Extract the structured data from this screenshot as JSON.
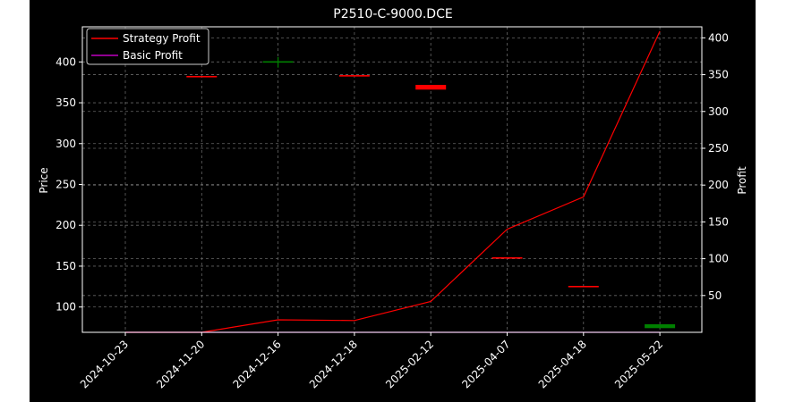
{
  "chart_data": {
    "type": "line",
    "title": "P2510-C-9000.DCE",
    "ylabel_left": "Price",
    "ylabel_right": "Profit",
    "categories": [
      "2024-10-23",
      "2024-11-20",
      "2024-12-16",
      "2024-12-18",
      "2025-02-12",
      "2025-04-07",
      "2025-04-18",
      "2025-05-22"
    ],
    "ylim_left": [
      69,
      443
    ],
    "yticks_left": [
      100,
      150,
      200,
      250,
      300,
      350,
      400
    ],
    "ylim_right": [
      0,
      415
    ],
    "yticks_right": [
      50,
      100,
      150,
      200,
      250,
      300,
      350,
      400
    ],
    "grid": true,
    "legend_position": "top-left",
    "series": [
      {
        "name": "Strategy Profit",
        "axis": "right",
        "color": "#ff0000",
        "values": [
          0,
          0,
          17,
          16,
          42,
          140,
          184,
          409
        ]
      },
      {
        "name": "Basic Profit",
        "axis": "right",
        "color": "#bf00bf",
        "values": [
          0,
          0,
          0,
          0,
          0,
          0,
          0,
          0
        ]
      }
    ],
    "candles": [
      {
        "x": "2024-11-20",
        "open": 382,
        "close": 382,
        "high": 382,
        "low": 382,
        "color": "#ff0000"
      },
      {
        "x": "2024-12-16",
        "open": 400,
        "close": 400,
        "high": 406,
        "low": 393,
        "color": "#008000"
      },
      {
        "x": "2024-12-18",
        "open": 383,
        "close": 383,
        "high": 383,
        "low": 383,
        "color": "#ff0000"
      },
      {
        "x": "2025-02-12",
        "open": 371,
        "close": 367,
        "high": 371,
        "low": 367,
        "color": "#ff0000"
      },
      {
        "x": "2025-04-07",
        "open": 160,
        "close": 160,
        "high": 160,
        "low": 160,
        "color": "#ff0000"
      },
      {
        "x": "2025-04-18",
        "open": 125,
        "close": 125,
        "high": 125,
        "low": 125,
        "color": "#ff0000"
      },
      {
        "x": "2025-05-22",
        "open": 75,
        "close": 78,
        "high": 78,
        "low": 75,
        "color": "#008000"
      }
    ]
  }
}
